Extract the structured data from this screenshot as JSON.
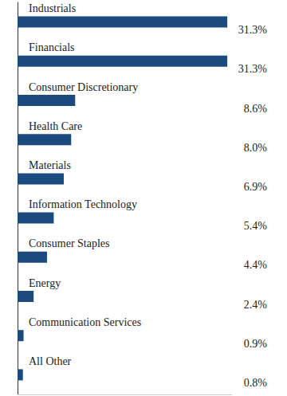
{
  "chart_data": {
    "type": "bar",
    "orientation": "horizontal",
    "categories": [
      "Industrials",
      "Financials",
      "Consumer Discretionary",
      "Health Care",
      "Materials",
      "Information Technology",
      "Consumer Staples",
      "Energy",
      "Communication Services",
      "All Other"
    ],
    "values": [
      31.3,
      31.3,
      8.6,
      8.0,
      6.9,
      5.4,
      4.4,
      2.4,
      0.9,
      0.8
    ],
    "value_labels": [
      "31.3%",
      "31.3%",
      "8.6%",
      "8.0%",
      "6.9%",
      "5.4%",
      "4.4%",
      "2.4%",
      "0.9%",
      "0.8%"
    ],
    "color": "#1d4a7e",
    "xlim": [
      0,
      32
    ],
    "data_labels": true,
    "tick_labels": "y",
    "grid": false
  }
}
